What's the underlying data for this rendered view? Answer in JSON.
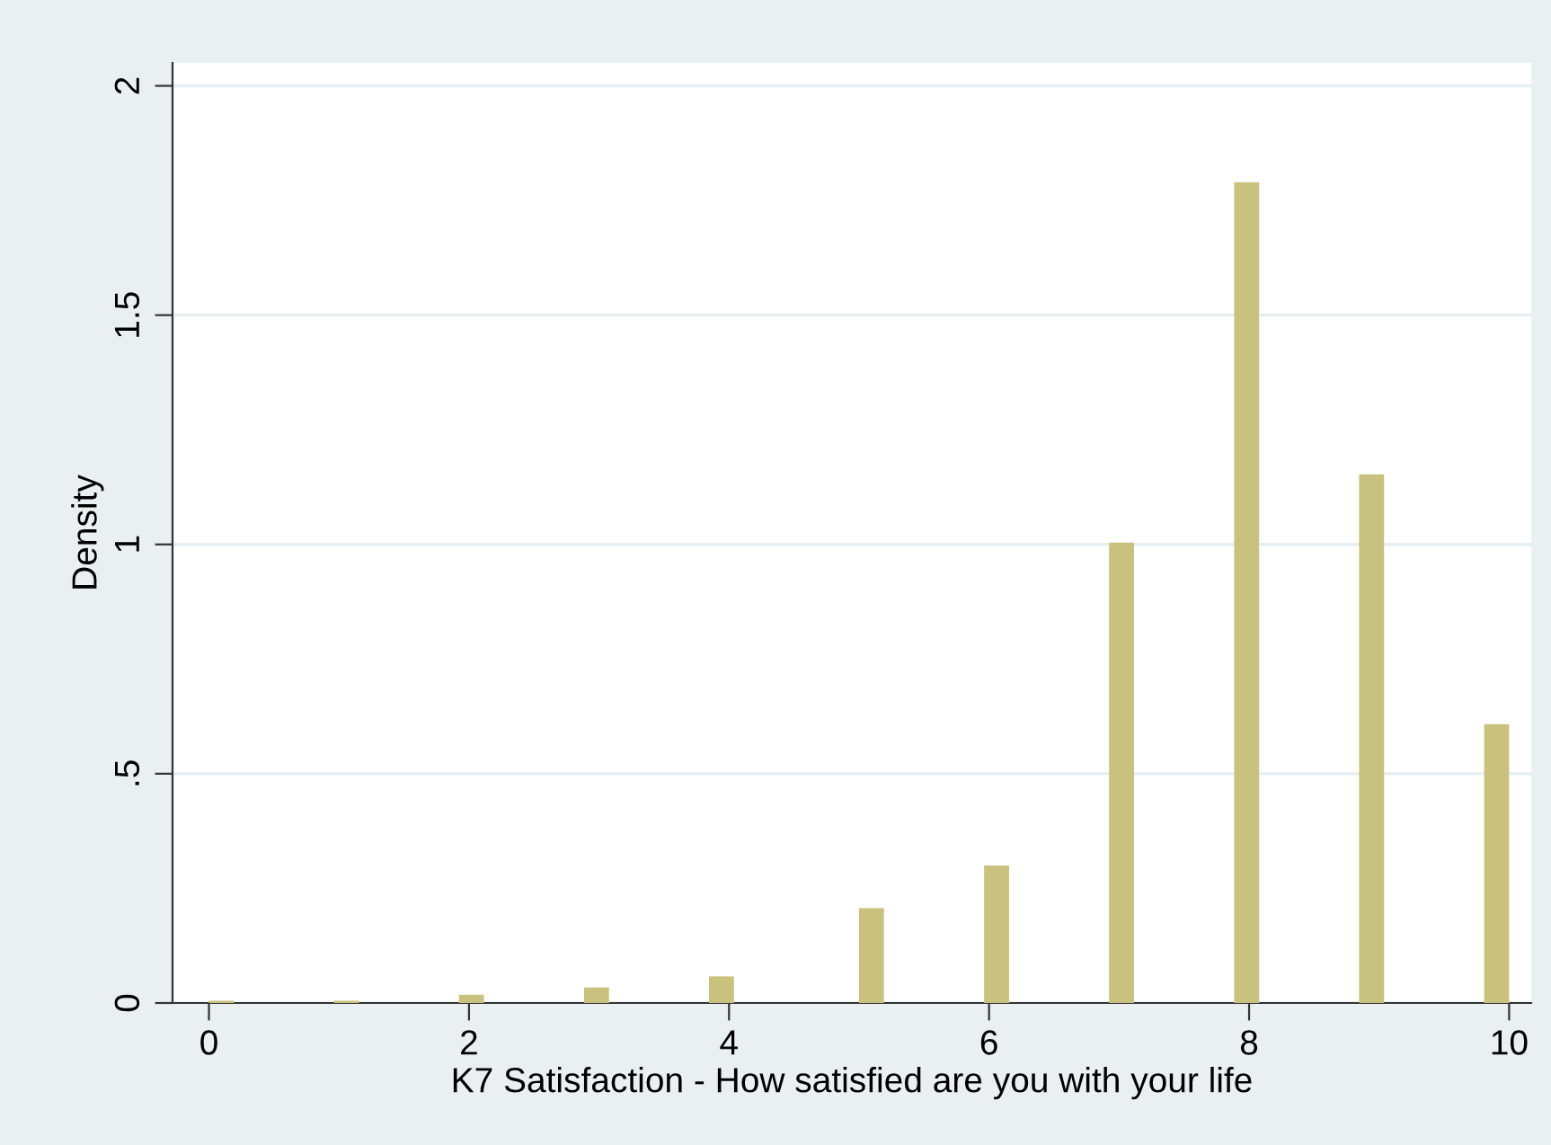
{
  "chart_data": {
    "type": "histogram",
    "xlabel": "K7 Satisfaction - How satisfied are you with your life",
    "ylabel": "Density",
    "bins": [
      0,
      0.192,
      0.385,
      0.577,
      0.769,
      0.962,
      1.154,
      1.346,
      1.538,
      1.731,
      1.923,
      2.115,
      2.308,
      2.5,
      2.692,
      2.885,
      3.077,
      3.269,
      3.462,
      3.654,
      3.846,
      4.038,
      4.231,
      4.423,
      4.615,
      4.808,
      5,
      5.192,
      5.385,
      5.577,
      5.769,
      5.962,
      6.154,
      6.346,
      6.538,
      6.731,
      6.923,
      7.115,
      7.308,
      7.5,
      7.692,
      7.885,
      8.077,
      8.269,
      8.462,
      8.654,
      8.846,
      9.038,
      9.231,
      9.423,
      9.615,
      9.808,
      10
    ],
    "values": [
      0.005,
      0,
      0,
      0,
      0,
      0.005,
      0,
      0,
      0,
      0,
      0.018,
      0,
      0,
      0,
      0,
      0.034,
      0,
      0,
      0,
      0,
      0.058,
      0,
      0,
      0,
      0,
      0,
      0.207,
      0,
      0,
      0,
      0,
      0.3,
      0,
      0,
      0,
      0,
      1.004,
      0,
      0,
      0,
      0,
      1.79,
      0,
      0,
      0,
      0,
      1.153,
      0,
      0,
      0,
      0,
      0.608
    ],
    "color": "#c9c27e",
    "xlim": [
      -0.28,
      10.17
    ],
    "ylim": [
      0,
      2.05
    ],
    "xticks": [
      0,
      2,
      4,
      6,
      8,
      10
    ],
    "yticks": [
      0,
      {
        "value": 0.5,
        "label": ".5"
      },
      1,
      1.5,
      2
    ],
    "grid": "y"
  }
}
